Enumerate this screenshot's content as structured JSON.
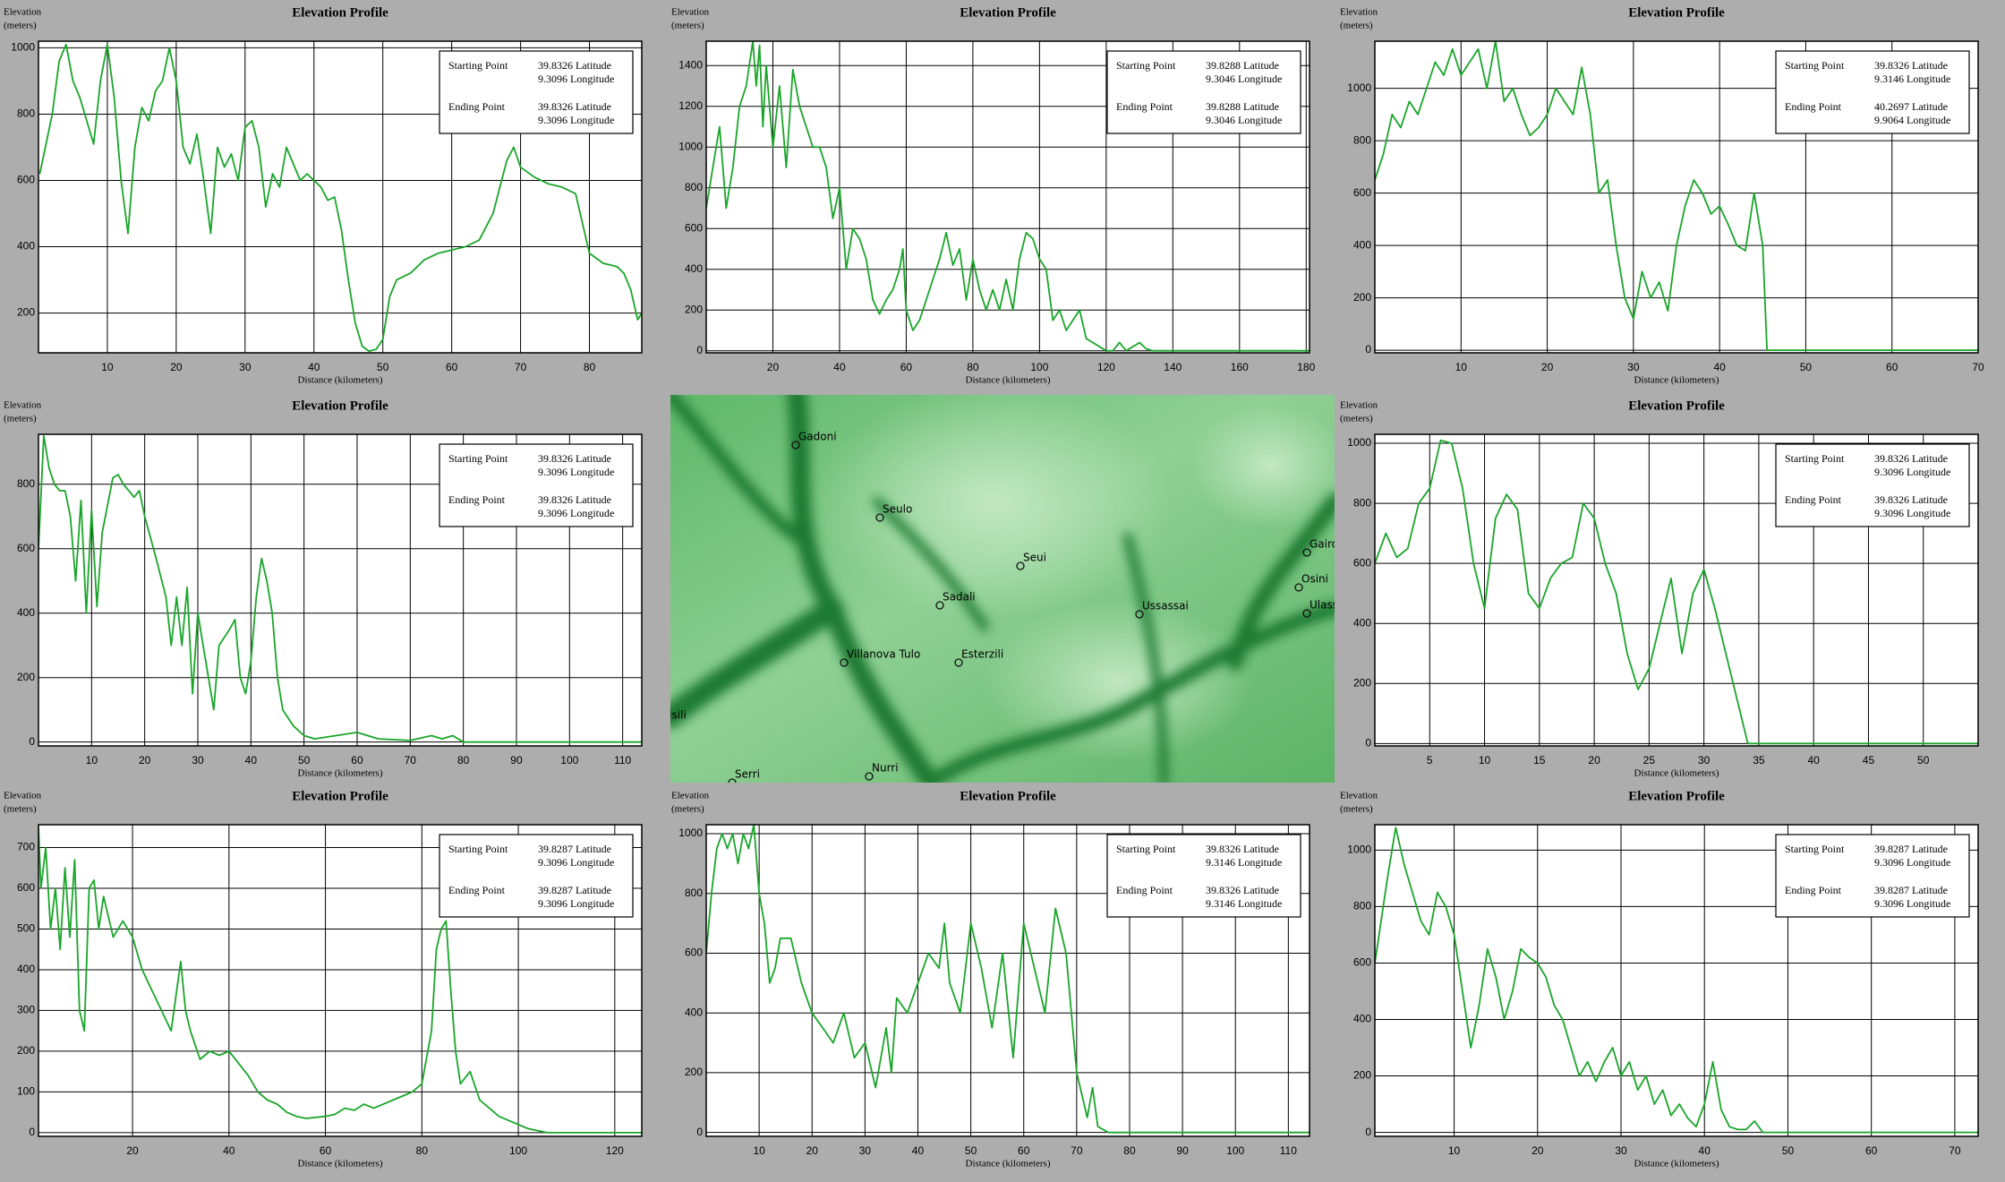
{
  "chart_data": [
    {
      "type": "line",
      "title": "Elevation Profile",
      "ylabel": [
        "Elevation",
        "(meters)"
      ],
      "xlabel": "Distance (kilometers)",
      "color": "#1aa52a",
      "grid": true,
      "xlim": [
        0,
        87.6
      ],
      "ylim": [
        80,
        1020
      ],
      "xticks": [
        10,
        20,
        30,
        40,
        50,
        60,
        70,
        80
      ],
      "yticks": [
        200,
        400,
        600,
        800,
        1000
      ],
      "x": [
        0.2,
        2,
        3,
        4,
        5,
        6,
        7,
        8,
        9,
        10,
        11,
        12,
        13,
        14,
        15,
        16,
        17,
        18,
        19,
        20,
        21,
        22,
        23,
        24,
        25,
        26,
        27,
        28,
        29,
        30,
        31,
        32,
        33,
        34,
        35,
        36,
        37,
        38,
        39,
        40,
        41,
        42,
        43,
        44,
        45,
        46,
        47,
        48,
        49,
        50,
        51,
        52,
        54,
        56,
        58,
        60,
        62,
        64,
        66,
        67,
        68,
        69,
        70,
        72,
        74,
        76,
        78,
        79,
        80,
        82,
        84,
        85,
        86,
        87,
        87.6
      ],
      "values": [
        620,
        800,
        960,
        1010,
        900,
        850,
        780,
        710,
        900,
        1010,
        850,
        600,
        440,
        700,
        820,
        780,
        870,
        900,
        1000,
        900,
        700,
        650,
        740,
        600,
        440,
        700,
        640,
        680,
        600,
        760,
        780,
        700,
        520,
        620,
        580,
        700,
        650,
        600,
        620,
        600,
        580,
        540,
        550,
        450,
        300,
        170,
        100,
        85,
        90,
        120,
        250,
        300,
        320,
        360,
        380,
        390,
        400,
        420,
        500,
        580,
        660,
        700,
        640,
        610,
        590,
        580,
        560,
        470,
        380,
        350,
        340,
        320,
        270,
        180,
        200
      ],
      "info": [
        {
          "label": "Starting Point",
          "lat": "39.8326 Latitude",
          "lon": "9.3096 Longitude"
        },
        {
          "label": "Ending Point",
          "lat": "39.8326 Latitude",
          "lon": "9.3096 Longitude"
        }
      ]
    },
    {
      "type": "line",
      "title": "Elevation Profile",
      "ylabel": [
        "Elevation",
        "(meters)"
      ],
      "xlabel": "Distance (kilometers)",
      "color": "#1aa52a",
      "grid": true,
      "xlim": [
        0,
        181
      ],
      "ylim": [
        -10,
        1520
      ],
      "xticks": [
        20,
        40,
        60,
        80,
        100,
        120,
        140,
        160,
        180
      ],
      "yticks": [
        0,
        200,
        400,
        600,
        800,
        1000,
        1200,
        1400
      ],
      "x": [
        0,
        2,
        4,
        6,
        8,
        10,
        12,
        14,
        15,
        16,
        17,
        18,
        20,
        22,
        24,
        26,
        28,
        30,
        32,
        34,
        36,
        38,
        40,
        42,
        44,
        46,
        48,
        50,
        52,
        54,
        56,
        58,
        59,
        60,
        62,
        64,
        66,
        68,
        70,
        72,
        74,
        76,
        78,
        80,
        82,
        84,
        86,
        88,
        90,
        92,
        94,
        96,
        98,
        100,
        102,
        104,
        106,
        108,
        110,
        112,
        114,
        116,
        118,
        120,
        122,
        124,
        126,
        128,
        130,
        132,
        134,
        140,
        160,
        181
      ],
      "values": [
        700,
        900,
        1100,
        700,
        900,
        1200,
        1300,
        1520,
        1300,
        1500,
        1100,
        1400,
        1000,
        1300,
        900,
        1380,
        1200,
        1100,
        1000,
        1000,
        900,
        650,
        800,
        400,
        600,
        550,
        450,
        250,
        180,
        250,
        300,
        400,
        500,
        200,
        100,
        150,
        250,
        350,
        450,
        580,
        420,
        500,
        250,
        450,
        300,
        200,
        300,
        200,
        350,
        200,
        450,
        580,
        550,
        450,
        400,
        150,
        200,
        100,
        150,
        200,
        60,
        40,
        20,
        0,
        0,
        40,
        0,
        20,
        40,
        10,
        0,
        0,
        0,
        0
      ],
      "info": [
        {
          "label": "Starting Point",
          "lat": "39.8288 Latitude",
          "lon": "9.3046 Longitude"
        },
        {
          "label": "Ending Point",
          "lat": "39.8288 Latitude",
          "lon": "9.3046 Longitude"
        }
      ]
    },
    {
      "type": "line",
      "title": "Elevation Profile",
      "ylabel": [
        "Elevation",
        "(meters)"
      ],
      "xlabel": "Distance (kilometers)",
      "color": "#1aa52a",
      "grid": true,
      "xlim": [
        0,
        70
      ],
      "ylim": [
        -10,
        1180
      ],
      "xticks": [
        10,
        20,
        30,
        40,
        50,
        60,
        70
      ],
      "yticks": [
        0,
        200,
        400,
        600,
        800,
        1000
      ],
      "x": [
        0,
        1,
        2,
        3,
        4,
        5,
        6,
        7,
        8,
        9,
        10,
        11,
        12,
        13,
        14,
        15,
        16,
        17,
        18,
        19,
        20,
        21,
        22,
        23,
        24,
        25,
        26,
        27,
        28,
        29,
        30,
        31,
        32,
        33,
        34,
        35,
        36,
        37,
        38,
        39,
        40,
        41,
        42,
        43,
        44,
        45,
        45.5,
        50,
        60,
        70
      ],
      "values": [
        650,
        750,
        900,
        850,
        950,
        900,
        1000,
        1100,
        1050,
        1150,
        1050,
        1100,
        1150,
        1000,
        1180,
        950,
        1000,
        900,
        820,
        850,
        900,
        1000,
        950,
        900,
        1080,
        900,
        600,
        650,
        400,
        200,
        120,
        300,
        200,
        260,
        150,
        400,
        550,
        650,
        600,
        520,
        550,
        480,
        400,
        380,
        600,
        400,
        0,
        0,
        0,
        0
      ],
      "info": [
        {
          "label": "Starting Point",
          "lat": "39.8326 Latitude",
          "lon": "9.3146 Longitude"
        },
        {
          "label": "Ending Point",
          "lat": "40.2697 Latitude",
          "lon": "9.9064 Longitude"
        }
      ]
    },
    {
      "type": "line",
      "title": "Elevation Profile",
      "ylabel": [
        "Elevation",
        "(meters)"
      ],
      "xlabel": "Distance (kilometers)",
      "color": "#1aa52a",
      "grid": true,
      "xlim": [
        0,
        113.6
      ],
      "ylim": [
        -12,
        955
      ],
      "xticks": [
        10,
        20,
        30,
        40,
        50,
        60,
        70,
        80,
        90,
        100,
        110
      ],
      "yticks": [
        0,
        200,
        400,
        600,
        800
      ],
      "x": [
        0,
        1,
        2,
        3,
        4,
        5,
        6,
        7,
        8,
        9,
        10,
        11,
        12,
        14,
        15,
        16,
        18,
        19,
        20,
        22,
        24,
        25,
        26,
        27,
        28,
        29,
        30,
        31,
        32,
        33,
        34,
        36,
        37,
        38,
        39,
        40,
        41,
        42,
        43,
        44,
        45,
        46,
        48,
        50,
        52,
        56,
        60,
        64,
        70,
        74,
        76,
        78,
        80,
        90,
        113.6
      ],
      "values": [
        600,
        950,
        850,
        800,
        780,
        780,
        700,
        500,
        750,
        400,
        720,
        420,
        650,
        820,
        830,
        800,
        760,
        780,
        700,
        580,
        450,
        300,
        450,
        300,
        480,
        150,
        400,
        300,
        200,
        100,
        300,
        350,
        380,
        200,
        150,
        250,
        450,
        570,
        500,
        400,
        200,
        100,
        50,
        20,
        10,
        20,
        30,
        10,
        5,
        20,
        10,
        20,
        0,
        0,
        0
      ],
      "info": [
        {
          "label": "Starting Point",
          "lat": "39.8326 Latitude",
          "lon": "9.3096 Longitude"
        },
        {
          "label": "Ending Point",
          "lat": "39.8326 Latitude",
          "lon": "9.3096 Longitude"
        }
      ]
    },
    {
      "type": "line",
      "title": "Elevation Profile",
      "ylabel": [
        "Elevation",
        "(meters)"
      ],
      "xlabel": "Distance (kilometers)",
      "color": "#1aa52a",
      "grid": true,
      "xlim": [
        0,
        55
      ],
      "ylim": [
        -8,
        1030
      ],
      "xticks": [
        5,
        10,
        15,
        20,
        25,
        30,
        35,
        40,
        45,
        50
      ],
      "yticks": [
        0,
        200,
        400,
        600,
        800,
        1000
      ],
      "x": [
        0,
        1,
        2,
        3,
        4,
        5,
        6,
        7,
        8,
        9,
        10,
        11,
        12,
        13,
        14,
        15,
        16,
        17,
        18,
        19,
        20,
        21,
        22,
        23,
        24,
        25,
        26,
        27,
        28,
        29,
        30,
        31,
        32,
        33,
        34,
        40,
        55
      ],
      "values": [
        600,
        700,
        620,
        650,
        800,
        850,
        1010,
        1000,
        850,
        600,
        450,
        750,
        830,
        780,
        500,
        450,
        550,
        600,
        620,
        800,
        750,
        600,
        500,
        300,
        180,
        250,
        400,
        550,
        300,
        500,
        580,
        450,
        300,
        150,
        0,
        0,
        0
      ],
      "info": [
        {
          "label": "Starting Point",
          "lat": "39.8326 Latitude",
          "lon": "9.3096 Longitude"
        },
        {
          "label": "Ending Point",
          "lat": "39.8326 Latitude",
          "lon": "9.3096 Longitude"
        }
      ]
    },
    {
      "type": "line",
      "title": "Elevation Profile",
      "ylabel": [
        "Elevation",
        "(meters)"
      ],
      "xlabel": "Distance (kilometers)",
      "color": "#1aa52a",
      "grid": true,
      "xlim": [
        0.5,
        125.6
      ],
      "ylim": [
        -9,
        756
      ],
      "xticks": [
        20,
        40,
        60,
        80,
        100,
        120
      ],
      "yticks": [
        0,
        100,
        200,
        300,
        400,
        500,
        600,
        700
      ],
      "x": [
        0.5,
        1,
        2,
        3,
        4,
        5,
        6,
        7,
        8,
        9,
        10,
        11,
        12,
        13,
        14,
        16,
        18,
        20,
        22,
        24,
        26,
        28,
        30,
        31,
        32,
        34,
        36,
        38,
        40,
        42,
        44,
        46,
        48,
        50,
        52,
        54,
        56,
        60,
        62,
        64,
        66,
        68,
        70,
        72,
        74,
        76,
        78,
        80,
        82,
        83,
        84,
        85,
        86,
        87,
        88,
        90,
        92,
        94,
        96,
        98,
        100,
        102,
        104,
        106,
        110,
        125.6
      ],
      "values": [
        750,
        600,
        700,
        500,
        600,
        450,
        650,
        480,
        670,
        300,
        250,
        600,
        620,
        500,
        580,
        480,
        520,
        480,
        400,
        350,
        300,
        250,
        420,
        300,
        250,
        180,
        200,
        190,
        200,
        170,
        140,
        100,
        80,
        70,
        50,
        40,
        35,
        40,
        45,
        60,
        55,
        70,
        60,
        70,
        80,
        90,
        100,
        120,
        250,
        450,
        500,
        520,
        350,
        200,
        120,
        150,
        80,
        60,
        40,
        30,
        20,
        10,
        5,
        0,
        0,
        0
      ],
      "info": [
        {
          "label": "Starting Point",
          "lat": "39.8287 Latitude",
          "lon": "9.3096 Longitude"
        },
        {
          "label": "Ending Point",
          "lat": "39.8287 Latitude",
          "lon": "9.3096 Longitude"
        }
      ]
    },
    {
      "type": "line",
      "title": "Elevation Profile",
      "ylabel": [
        "Elevation",
        "(meters)"
      ],
      "xlabel": "Distance (kilometers)",
      "color": "#1aa52a",
      "grid": true,
      "xlim": [
        0,
        114
      ],
      "ylim": [
        -13,
        1030
      ],
      "xticks": [
        10,
        20,
        30,
        40,
        50,
        60,
        70,
        80,
        90,
        100,
        110
      ],
      "yticks": [
        0,
        200,
        400,
        600,
        800,
        1000
      ],
      "x": [
        0,
        1,
        2,
        3,
        4,
        5,
        6,
        7,
        8,
        9,
        10,
        11,
        12,
        13,
        14,
        16,
        18,
        20,
        22,
        24,
        26,
        28,
        30,
        32,
        34,
        35,
        36,
        38,
        40,
        42,
        44,
        45,
        46,
        48,
        50,
        52,
        54,
        56,
        58,
        60,
        62,
        64,
        66,
        68,
        70,
        72,
        73,
        74,
        76,
        90,
        114
      ],
      "values": [
        600,
        800,
        950,
        1000,
        950,
        1000,
        900,
        1000,
        950,
        1030,
        800,
        700,
        500,
        550,
        650,
        650,
        500,
        400,
        350,
        300,
        400,
        250,
        300,
        150,
        350,
        200,
        450,
        400,
        500,
        600,
        550,
        700,
        500,
        400,
        700,
        550,
        350,
        600,
        250,
        700,
        550,
        400,
        750,
        600,
        200,
        50,
        150,
        20,
        0,
        0,
        0
      ],
      "info": [
        {
          "label": "Starting Point",
          "lat": "39.8326 Latitude",
          "lon": "9.3146 Longitude"
        },
        {
          "label": "Ending Point",
          "lat": "39.8326 Latitude",
          "lon": "9.3146 Longitude"
        }
      ]
    },
    {
      "type": "line",
      "title": "Elevation Profile",
      "ylabel": [
        "Elevation",
        "(meters)"
      ],
      "xlabel": "Distance (kilometers)",
      "color": "#1aa52a",
      "grid": true,
      "xlim": [
        0.5,
        72.8
      ],
      "ylim": [
        -14,
        1090
      ],
      "xticks": [
        10,
        20,
        30,
        40,
        50,
        60,
        70
      ],
      "yticks": [
        0,
        200,
        400,
        600,
        800,
        1000
      ],
      "x": [
        0.5,
        1,
        2,
        3,
        4,
        5,
        6,
        7,
        8,
        9,
        10,
        11,
        12,
        13,
        14,
        15,
        16,
        17,
        18,
        19,
        20,
        21,
        22,
        23,
        24,
        25,
        26,
        27,
        28,
        29,
        30,
        31,
        32,
        33,
        34,
        35,
        36,
        37,
        38,
        39,
        40,
        41,
        42,
        43,
        44,
        45,
        46,
        47,
        50,
        72.8
      ],
      "values": [
        600,
        700,
        900,
        1080,
        950,
        850,
        750,
        700,
        850,
        800,
        700,
        500,
        300,
        450,
        650,
        550,
        400,
        500,
        650,
        620,
        600,
        550,
        450,
        400,
        300,
        200,
        250,
        180,
        250,
        300,
        200,
        250,
        150,
        200,
        100,
        150,
        60,
        100,
        50,
        20,
        100,
        250,
        80,
        20,
        10,
        10,
        40,
        0,
        0,
        0
      ],
      "info": [
        {
          "label": "Starting Point",
          "lat": "39.8287 Latitude",
          "lon": "9.3096 Longitude"
        },
        {
          "label": "Ending Point",
          "lat": "39.8287 Latitude",
          "lon": "9.3096 Longitude"
        }
      ]
    }
  ],
  "map": {
    "places": [
      "Gadoni",
      "Seulo",
      "Seui",
      "Sadali",
      "Ussassai",
      "Gairo",
      "Osini",
      "Ulassai",
      "Villanova Tulo",
      "Esterzili",
      "Isili",
      "Nurri",
      "Serri"
    ]
  }
}
